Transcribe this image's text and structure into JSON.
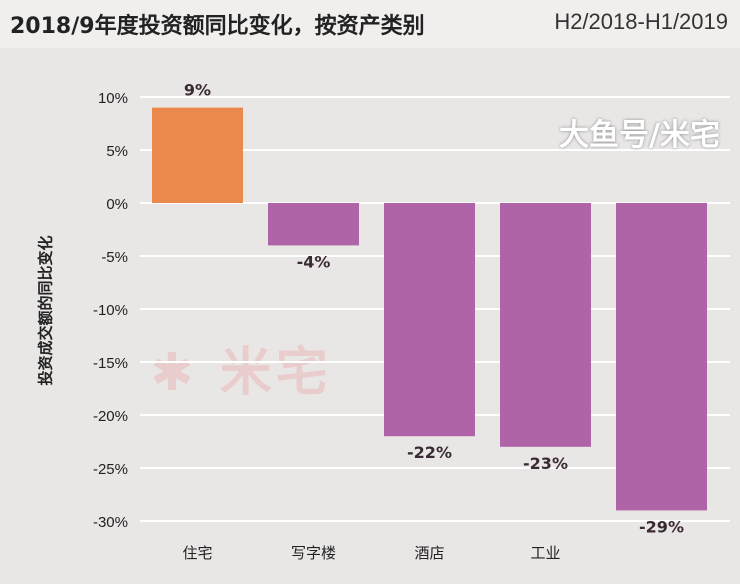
{
  "chart_data": {
    "type": "bar",
    "title": "2018/9年度投资额同比变化，按资产类别",
    "subtitle": "H2/2018-H1/2019",
    "ylabel": "投资成交额的同比变化",
    "categories": [
      "住宅",
      "写字楼",
      "酒店",
      "工业",
      ""
    ],
    "values": [
      9,
      -4,
      -22,
      -23,
      -29
    ],
    "data_labels": [
      "9%",
      "-4%",
      "-22%",
      "-23%",
      "-29%"
    ],
    "ylim": [
      -30,
      10
    ],
    "yticks": [
      10,
      5,
      0,
      -5,
      -10,
      -15,
      -20,
      -25,
      -30
    ],
    "ytick_labels": [
      "10%",
      "5%",
      "0%",
      "-5%",
      "-10%",
      "-15%",
      "-20%",
      "-25%",
      "-30%"
    ],
    "grid": true,
    "colors": {
      "positive": "#e98a4c",
      "negative": "#b064a8",
      "grid": "#ffffff",
      "background": "#e9e7e6"
    }
  },
  "watermark": "大鱼号/米宅",
  "logo": "米宅"
}
